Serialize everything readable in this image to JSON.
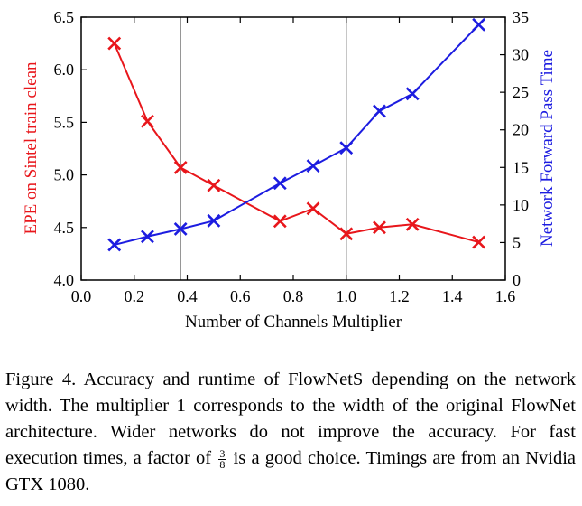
{
  "chart_data": {
    "type": "line",
    "x_axis": {
      "label": "Number of Channels Multiplier",
      "range": [
        0.0,
        1.6
      ],
      "ticks": [
        "0.0",
        "0.2",
        "0.4",
        "0.6",
        "0.8",
        "1.0",
        "1.2",
        "1.4",
        "1.6"
      ]
    },
    "y_left": {
      "label": "EPE on Sintel train clean",
      "range": [
        4.0,
        6.5
      ],
      "ticks": [
        "4.0",
        "4.5",
        "5.0",
        "5.5",
        "6.0",
        "6.5"
      ],
      "color": "#e8161b"
    },
    "y_right": {
      "label": "Network Forward Pass Time",
      "range": [
        0,
        35
      ],
      "ticks": [
        "0",
        "5",
        "10",
        "15",
        "20",
        "25",
        "30",
        "35"
      ],
      "color": "#1c1ce0"
    },
    "vertical_lines": [
      0.375,
      1.0
    ],
    "series": [
      {
        "axis": "left",
        "color": "#e8161b",
        "marker": "x",
        "x": [
          0.125,
          0.25,
          0.375,
          0.5,
          0.75,
          0.875,
          1.0,
          1.125,
          1.25,
          1.5
        ],
        "y": [
          6.25,
          5.51,
          5.07,
          4.9,
          4.56,
          4.68,
          4.44,
          4.5,
          4.53,
          4.36
        ]
      },
      {
        "axis": "right",
        "color": "#1c1ce0",
        "marker": "x",
        "x": [
          0.125,
          0.25,
          0.375,
          0.5,
          0.75,
          0.875,
          1.0,
          1.125,
          1.25,
          1.5
        ],
        "y": [
          4.7,
          5.8,
          6.8,
          7.9,
          12.9,
          15.2,
          17.6,
          22.5,
          24.8,
          34.0
        ]
      }
    ],
    "grid": false,
    "legend": "none"
  },
  "caption": {
    "before": "Figure 4. Accuracy and runtime of FlowNetS depending on the network width. The multiplier 1 corresponds to the width of the original FlowNet architecture. Wider networks do not improve the accuracy. For fast execution times, a factor of",
    "frac_num": "3",
    "frac_den": "8",
    "after": "is a good choice. Timings are from an Nvidia GTX 1080."
  }
}
